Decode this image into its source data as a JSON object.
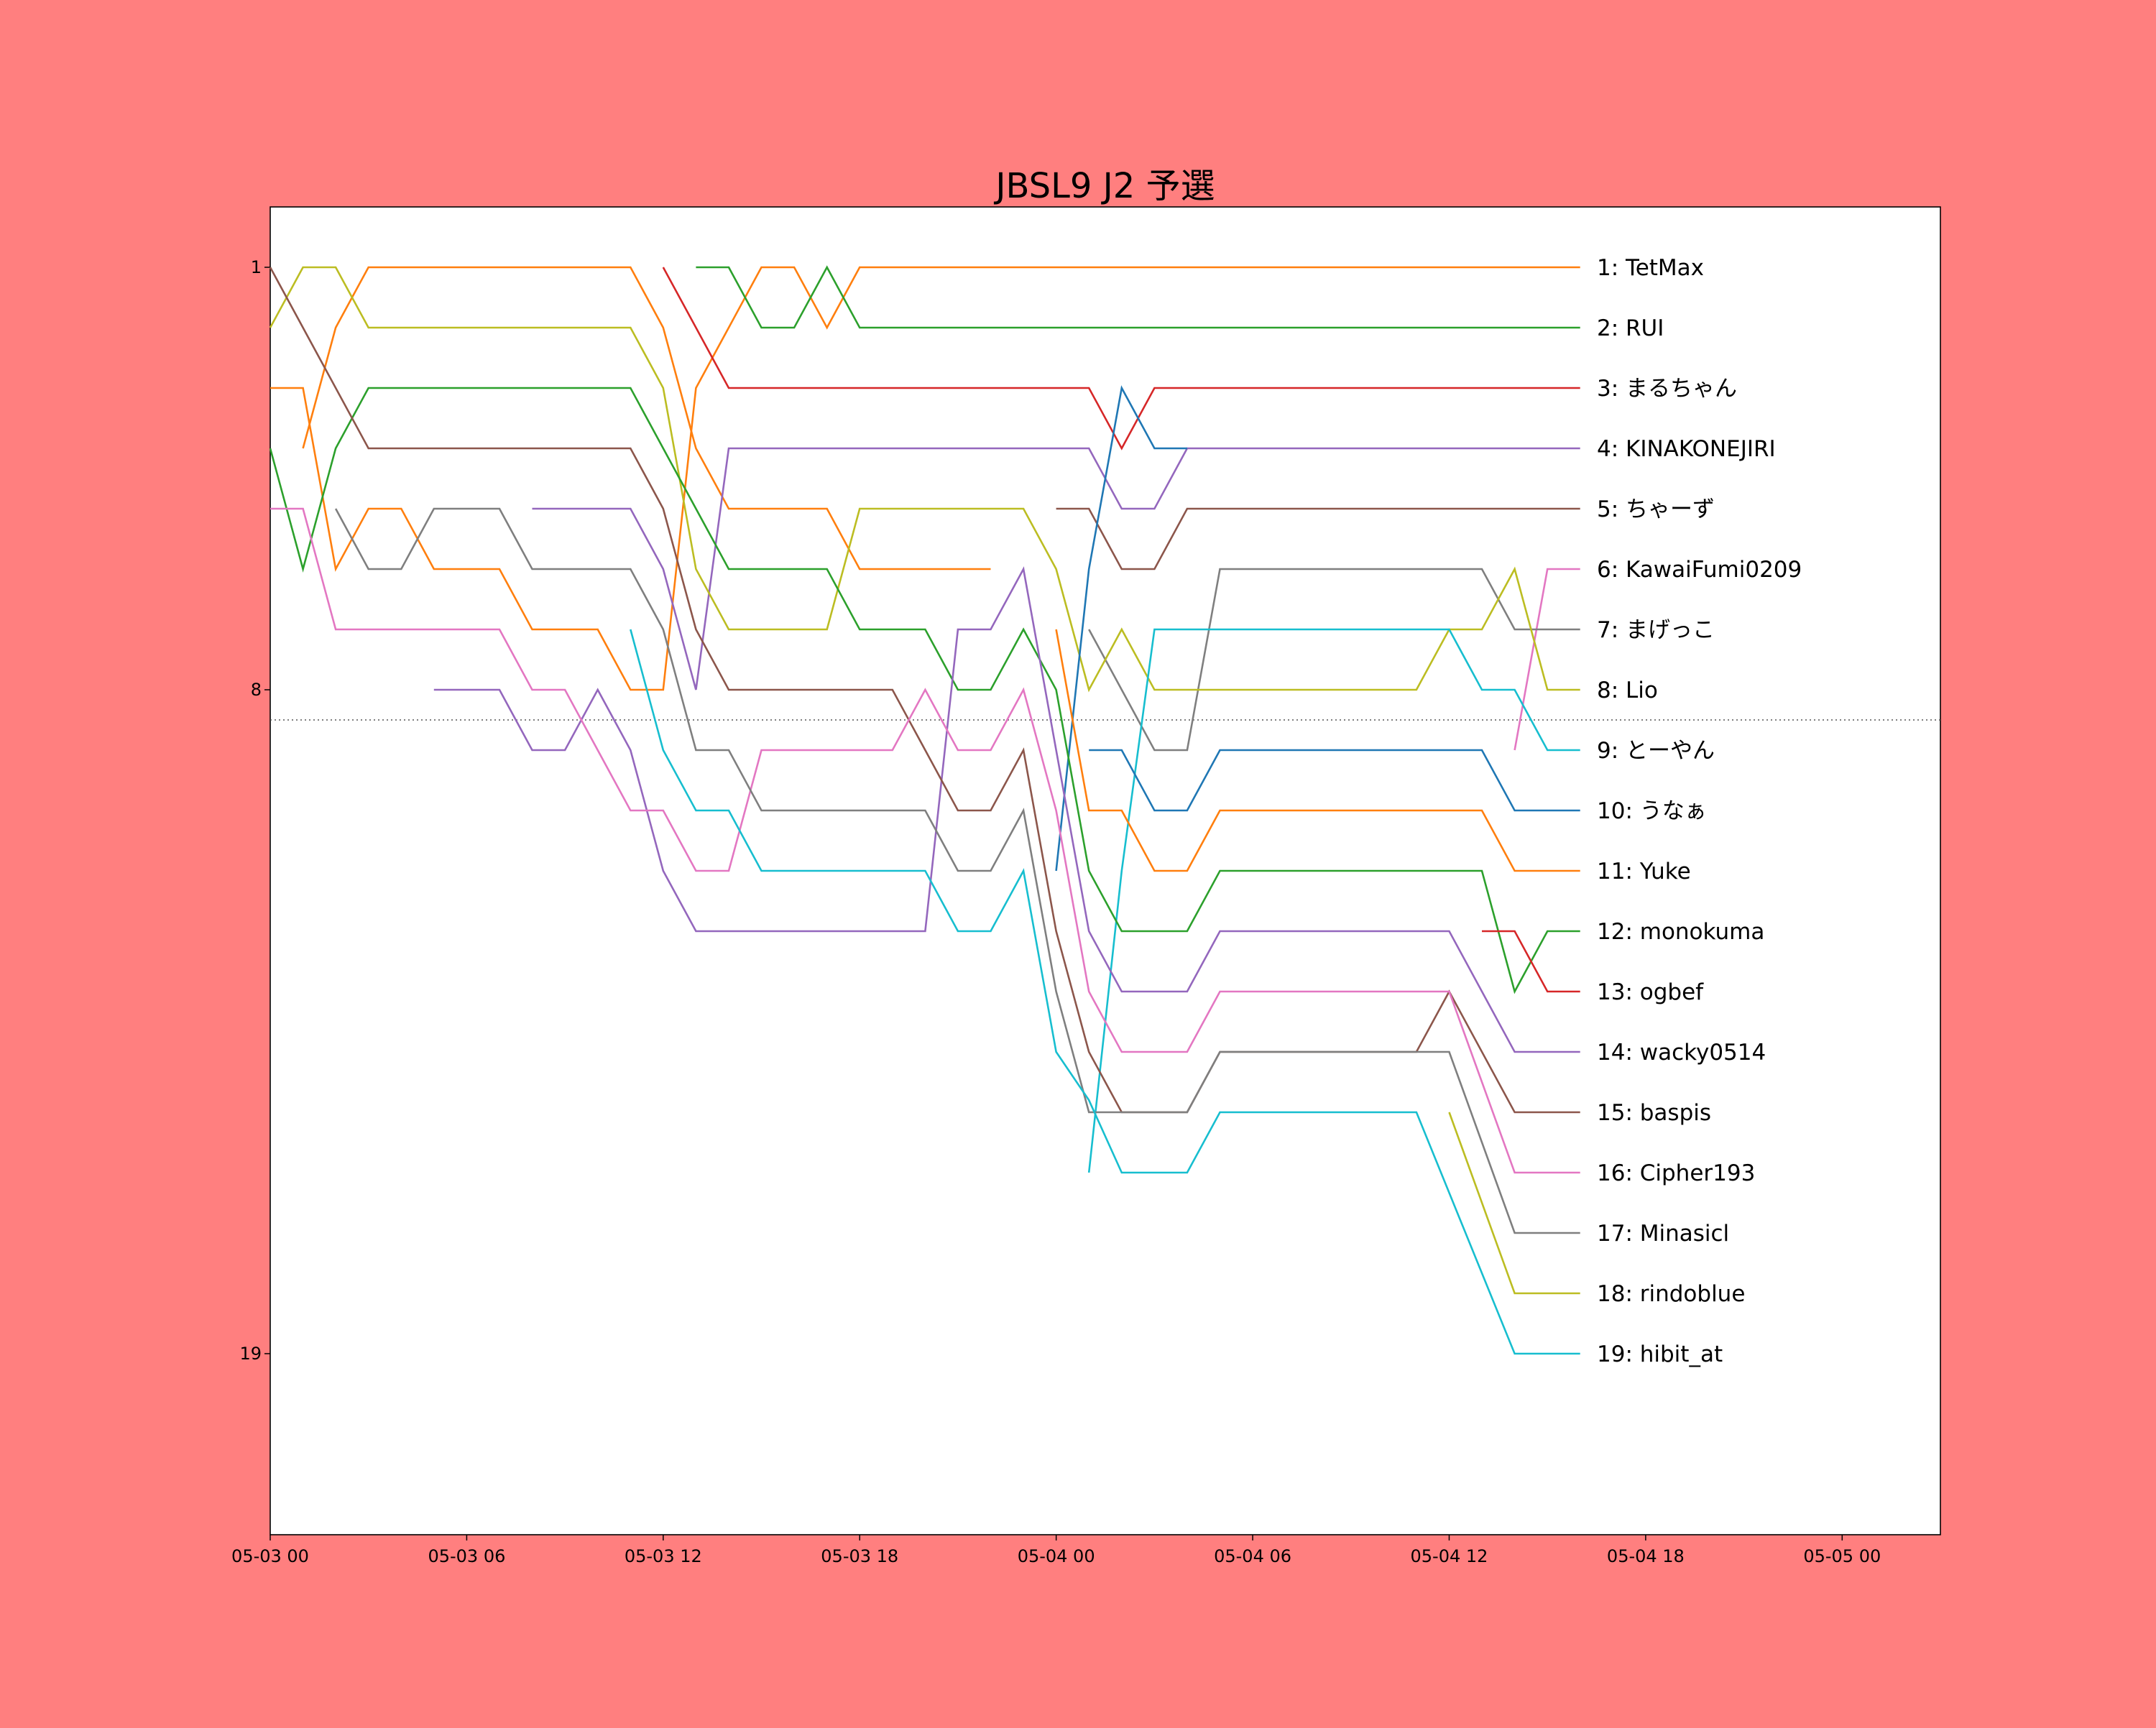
{
  "chart_data": {
    "type": "line",
    "title": "JBSL9 J2 予選",
    "xlabel": "",
    "ylabel": "",
    "y_inverted": true,
    "ylim": [
      22,
      0
    ],
    "xlim": [
      "05-03 00:00",
      "05-05 03:00"
    ],
    "x_ticks": [
      "05-03 00",
      "05-03 06",
      "05-03 12",
      "05-03 18",
      "05-04 00",
      "05-04 06",
      "05-04 12",
      "05-04 18",
      "05-05 00"
    ],
    "y_ticks": [
      "1",
      "8",
      "19"
    ],
    "cutoff_line_rank": 8.5,
    "grid": false,
    "legend": "none",
    "end_labels": [
      "1: TetMax",
      "2: RUI",
      "3: まるちゃん",
      "4: KINAKONEJIRI",
      "5: ちゃーず",
      "6: KawaiFumi0209",
      "7: まげっこ",
      "8: Lio",
      "9: とーやん",
      "10: うなぁ",
      "11: Yuke",
      "12: monokuma",
      "13: ogbef",
      "14: wacky0514",
      "15: baspis",
      "16: Cipher193",
      "17: Minasicl",
      "18: rindoblue",
      "19: hibit_at"
    ],
    "series": [
      {
        "color": "#ff7f0e",
        "points": [
          [
            "05-03 01:00",
            4
          ],
          [
            "05-03 02:00",
            2
          ],
          [
            "05-03 03:00",
            1
          ],
          [
            "05-03 11:00",
            1
          ],
          [
            "05-03 12:00",
            2
          ],
          [
            "05-03 13:00",
            4
          ],
          [
            "05-03 14:00",
            5
          ],
          [
            "05-03 17:00",
            5
          ],
          [
            "05-03 18:00",
            6
          ],
          [
            "05-03 22:00",
            6
          ]
        ]
      },
      {
        "color": "#ff7f0e",
        "points": [
          [
            "05-03 00:00",
            3
          ],
          [
            "05-03 01:00",
            3
          ],
          [
            "05-03 02:00",
            6
          ],
          [
            "05-03 03:00",
            5
          ],
          [
            "05-03 04:00",
            5
          ],
          [
            "05-03 05:00",
            6
          ],
          [
            "05-03 07:00",
            6
          ],
          [
            "05-03 08:00",
            7
          ],
          [
            "05-03 10:00",
            7
          ],
          [
            "05-03 11:00",
            8
          ],
          [
            "05-03 12:00",
            8
          ],
          [
            "05-03 13:00",
            3
          ],
          [
            "05-03 14:00",
            2
          ],
          [
            "05-03 15:00",
            1
          ],
          [
            "05-03 16:00",
            1
          ],
          [
            "05-03 17:00",
            2
          ],
          [
            "05-03 18:00",
            1
          ],
          [
            "05-04 16:00",
            1
          ]
        ]
      },
      {
        "color": "#2ca02c",
        "points": [
          [
            "05-03 13:00",
            1
          ],
          [
            "05-03 14:00",
            1
          ],
          [
            "05-03 15:00",
            2
          ],
          [
            "05-03 16:00",
            2
          ],
          [
            "05-03 17:00",
            1
          ],
          [
            "05-03 18:00",
            2
          ],
          [
            "05-04 16:00",
            2
          ]
        ]
      },
      {
        "color": "#d62728",
        "points": [
          [
            "05-03 12:00",
            1
          ],
          [
            "05-03 14:00",
            3
          ],
          [
            "05-04 01:00",
            3
          ],
          [
            "05-04 02:00",
            4
          ],
          [
            "05-04 03:00",
            3
          ],
          [
            "05-04 16:00",
            3
          ]
        ]
      },
      {
        "color": "#9467bd",
        "points": [
          [
            "05-03 08:00",
            5
          ],
          [
            "05-03 11:00",
            5
          ],
          [
            "05-03 12:00",
            6
          ],
          [
            "05-03 13:00",
            8
          ],
          [
            "05-03 14:00",
            4
          ],
          [
            "05-04 01:00",
            4
          ],
          [
            "05-04 02:00",
            5
          ],
          [
            "05-04 03:00",
            5
          ],
          [
            "05-04 04:00",
            4
          ],
          [
            "05-04 16:00",
            4
          ]
        ]
      },
      {
        "color": "#8c564b",
        "points": [
          [
            "05-04 00:00",
            5
          ],
          [
            "05-04 01:00",
            5
          ],
          [
            "05-04 02:00",
            6
          ],
          [
            "05-04 03:00",
            6
          ],
          [
            "05-04 04:00",
            5
          ],
          [
            "05-04 16:00",
            5
          ]
        ]
      },
      {
        "color": "#e377c2",
        "points": [
          [
            "05-04 14:00",
            9
          ],
          [
            "05-04 15:00",
            6
          ],
          [
            "05-04 16:00",
            6
          ]
        ]
      },
      {
        "color": "#7f7f7f",
        "points": [
          [
            "05-04 01:00",
            7
          ],
          [
            "05-04 02:00",
            8
          ],
          [
            "05-04 03:00",
            9
          ],
          [
            "05-04 04:00",
            9
          ],
          [
            "05-04 05:00",
            6
          ],
          [
            "05-04 13:00",
            6
          ],
          [
            "05-04 14:00",
            7
          ],
          [
            "05-04 16:00",
            7
          ]
        ]
      },
      {
        "color": "#bcbd22",
        "points": [
          [
            "05-03 00:00",
            2
          ],
          [
            "05-03 01:00",
            1
          ],
          [
            "05-03 02:00",
            1
          ],
          [
            "05-03 03:00",
            2
          ],
          [
            "05-03 11:00",
            2
          ],
          [
            "05-03 12:00",
            3
          ],
          [
            "05-03 13:00",
            6
          ],
          [
            "05-03 14:00",
            7
          ],
          [
            "05-03 17:00",
            7
          ],
          [
            "05-03 18:00",
            5
          ],
          [
            "05-03 23:00",
            5
          ],
          [
            "05-04 00:00",
            6
          ],
          [
            "05-04 01:00",
            8
          ],
          [
            "05-04 02:00",
            7
          ],
          [
            "05-04 03:00",
            8
          ],
          [
            "05-04 11:00",
            8
          ],
          [
            "05-04 12:00",
            7
          ],
          [
            "05-04 13:00",
            7
          ],
          [
            "05-04 14:00",
            6
          ],
          [
            "05-04 15:00",
            8
          ],
          [
            "05-04 16:00",
            8
          ]
        ]
      },
      {
        "color": "#17becf",
        "points": [
          [
            "05-04 01:00",
            16
          ],
          [
            "05-04 02:00",
            11
          ],
          [
            "05-04 03:00",
            7
          ],
          [
            "05-04 12:00",
            7
          ],
          [
            "05-04 13:00",
            8
          ],
          [
            "05-04 14:00",
            8
          ],
          [
            "05-04 15:00",
            9
          ],
          [
            "05-04 16:00",
            9
          ]
        ]
      },
      {
        "color": "#1f77b4",
        "points": [
          [
            "05-04 00:00",
            11
          ],
          [
            "05-04 01:00",
            6
          ],
          [
            "05-04 02:00",
            3
          ],
          [
            "05-04 03:00",
            4
          ],
          [
            "05-04 04:00",
            4
          ]
        ]
      },
      {
        "color": "#1f77b4",
        "points": [
          [
            "05-04 01:00",
            9
          ],
          [
            "05-04 02:00",
            9
          ],
          [
            "05-04 03:00",
            10
          ],
          [
            "05-04 04:00",
            10
          ],
          [
            "05-04 05:00",
            9
          ],
          [
            "05-04 13:00",
            9
          ],
          [
            "05-04 14:00",
            10
          ],
          [
            "05-04 16:00",
            10
          ]
        ]
      },
      {
        "color": "#ff7f0e",
        "points": [
          [
            "05-04 00:00",
            7
          ],
          [
            "05-04 01:00",
            10
          ],
          [
            "05-04 02:00",
            10
          ],
          [
            "05-04 03:00",
            11
          ],
          [
            "05-04 04:00",
            11
          ],
          [
            "05-04 05:00",
            10
          ],
          [
            "05-04 13:00",
            10
          ],
          [
            "05-04 14:00",
            11
          ],
          [
            "05-04 16:00",
            11
          ]
        ]
      },
      {
        "color": "#2ca02c",
        "points": [
          [
            "05-03 00:00",
            4
          ],
          [
            "05-03 01:00",
            6
          ],
          [
            "05-03 02:00",
            4
          ],
          [
            "05-03 03:00",
            3
          ],
          [
            "05-03 11:00",
            3
          ],
          [
            "05-03 12:00",
            4
          ],
          [
            "05-03 13:00",
            5
          ],
          [
            "05-03 14:00",
            6
          ],
          [
            "05-03 17:00",
            6
          ],
          [
            "05-03 18:00",
            7
          ],
          [
            "05-03 20:00",
            7
          ],
          [
            "05-03 21:00",
            8
          ],
          [
            "05-03 22:00",
            8
          ],
          [
            "05-03 23:00",
            7
          ],
          [
            "05-04 00:00",
            8
          ],
          [
            "05-04 01:00",
            11
          ],
          [
            "05-04 02:00",
            12
          ],
          [
            "05-04 04:00",
            12
          ],
          [
            "05-04 05:00",
            11
          ],
          [
            "05-04 13:00",
            11
          ],
          [
            "05-04 14:00",
            13
          ],
          [
            "05-04 15:00",
            12
          ],
          [
            "05-04 16:00",
            12
          ]
        ]
      },
      {
        "color": "#d62728",
        "points": [
          [
            "05-04 13:00",
            12
          ],
          [
            "05-04 14:00",
            12
          ],
          [
            "05-04 15:00",
            13
          ],
          [
            "05-04 16:00",
            13
          ]
        ]
      },
      {
        "color": "#9467bd",
        "points": [
          [
            "05-03 05:00",
            8
          ],
          [
            "05-03 07:00",
            8
          ],
          [
            "05-03 08:00",
            9
          ],
          [
            "05-03 09:00",
            9
          ],
          [
            "05-03 10:00",
            8
          ],
          [
            "05-03 11:00",
            9
          ],
          [
            "05-03 12:00",
            11
          ],
          [
            "05-03 13:00",
            12
          ],
          [
            "05-03 20:00",
            12
          ],
          [
            "05-03 21:00",
            7
          ],
          [
            "05-03 22:00",
            7
          ],
          [
            "05-03 23:00",
            6
          ],
          [
            "05-04 00:00",
            9
          ],
          [
            "05-04 01:00",
            12
          ],
          [
            "05-04 02:00",
            13
          ],
          [
            "05-04 04:00",
            13
          ],
          [
            "05-04 05:00",
            12
          ],
          [
            "05-04 12:00",
            12
          ],
          [
            "05-04 14:00",
            14
          ],
          [
            "05-04 16:00",
            14
          ]
        ]
      },
      {
        "color": "#8c564b",
        "points": [
          [
            "05-03 00:00",
            1
          ],
          [
            "05-03 03:00",
            4
          ],
          [
            "05-03 11:00",
            4
          ],
          [
            "05-03 12:00",
            5
          ],
          [
            "05-03 13:00",
            7
          ],
          [
            "05-03 14:00",
            8
          ],
          [
            "05-03 19:00",
            8
          ],
          [
            "05-03 20:00",
            9
          ],
          [
            "05-03 21:00",
            10
          ],
          [
            "05-03 22:00",
            10
          ],
          [
            "05-03 23:00",
            9
          ],
          [
            "05-04 00:00",
            12
          ],
          [
            "05-04 01:00",
            14
          ],
          [
            "05-04 02:00",
            15
          ],
          [
            "05-04 04:00",
            15
          ],
          [
            "05-04 05:00",
            14
          ],
          [
            "05-04 11:00",
            14
          ],
          [
            "05-04 12:00",
            13
          ],
          [
            "05-04 14:00",
            15
          ],
          [
            "05-04 16:00",
            15
          ]
        ]
      },
      {
        "color": "#e377c2",
        "points": [
          [
            "05-03 00:00",
            5
          ],
          [
            "05-03 01:00",
            5
          ],
          [
            "05-03 02:00",
            7
          ],
          [
            "05-03 07:00",
            7
          ],
          [
            "05-03 08:00",
            8
          ],
          [
            "05-03 09:00",
            8
          ],
          [
            "05-03 10:00",
            9
          ],
          [
            "05-03 11:00",
            10
          ],
          [
            "05-03 12:00",
            10
          ],
          [
            "05-03 13:00",
            11
          ],
          [
            "05-03 14:00",
            11
          ],
          [
            "05-03 15:00",
            9
          ],
          [
            "05-03 19:00",
            9
          ],
          [
            "05-03 20:00",
            8
          ],
          [
            "05-03 21:00",
            9
          ],
          [
            "05-03 22:00",
            9
          ],
          [
            "05-03 23:00",
            8
          ],
          [
            "05-04 00:00",
            10
          ],
          [
            "05-04 01:00",
            13
          ],
          [
            "05-04 02:00",
            14
          ],
          [
            "05-04 04:00",
            14
          ],
          [
            "05-04 05:00",
            13
          ],
          [
            "05-04 12:00",
            13
          ],
          [
            "05-04 14:00",
            16
          ],
          [
            "05-04 16:00",
            16
          ]
        ]
      },
      {
        "color": "#7f7f7f",
        "points": [
          [
            "05-03 02:00",
            5
          ],
          [
            "05-03 03:00",
            6
          ],
          [
            "05-03 04:00",
            6
          ],
          [
            "05-03 05:00",
            5
          ],
          [
            "05-03 07:00",
            5
          ],
          [
            "05-03 08:00",
            6
          ],
          [
            "05-03 11:00",
            6
          ],
          [
            "05-03 12:00",
            7
          ],
          [
            "05-03 13:00",
            9
          ],
          [
            "05-03 14:00",
            9
          ],
          [
            "05-03 15:00",
            10
          ],
          [
            "05-03 20:00",
            10
          ],
          [
            "05-03 21:00",
            11
          ],
          [
            "05-03 22:00",
            11
          ],
          [
            "05-03 23:00",
            10
          ],
          [
            "05-04 00:00",
            13
          ],
          [
            "05-04 01:00",
            15
          ],
          [
            "05-04 04:00",
            15
          ],
          [
            "05-04 05:00",
            14
          ],
          [
            "05-04 12:00",
            14
          ],
          [
            "05-04 14:00",
            17
          ],
          [
            "05-04 16:00",
            17
          ]
        ]
      },
      {
        "color": "#bcbd22",
        "points": [
          [
            "05-04 12:00",
            15
          ],
          [
            "05-04 14:00",
            18
          ],
          [
            "05-04 16:00",
            18
          ]
        ]
      },
      {
        "color": "#17becf",
        "points": [
          [
            "05-03 11:00",
            7
          ],
          [
            "05-03 12:00",
            9
          ],
          [
            "05-03 13:00",
            10
          ],
          [
            "05-03 14:00",
            10
          ],
          [
            "05-03 15:00",
            11
          ],
          [
            "05-03 20:00",
            11
          ],
          [
            "05-03 21:00",
            12
          ],
          [
            "05-03 22:00",
            12
          ],
          [
            "05-03 23:00",
            11
          ],
          [
            "05-04 00:00",
            14
          ],
          [
            "05-04 01:00",
            14.8
          ],
          [
            "05-04 02:00",
            16
          ],
          [
            "05-04 04:00",
            16
          ],
          [
            "05-04 05:00",
            15
          ],
          [
            "05-04 11:00",
            15
          ],
          [
            "05-04 14:00",
            19
          ],
          [
            "05-04 16:00",
            19
          ]
        ]
      }
    ]
  }
}
